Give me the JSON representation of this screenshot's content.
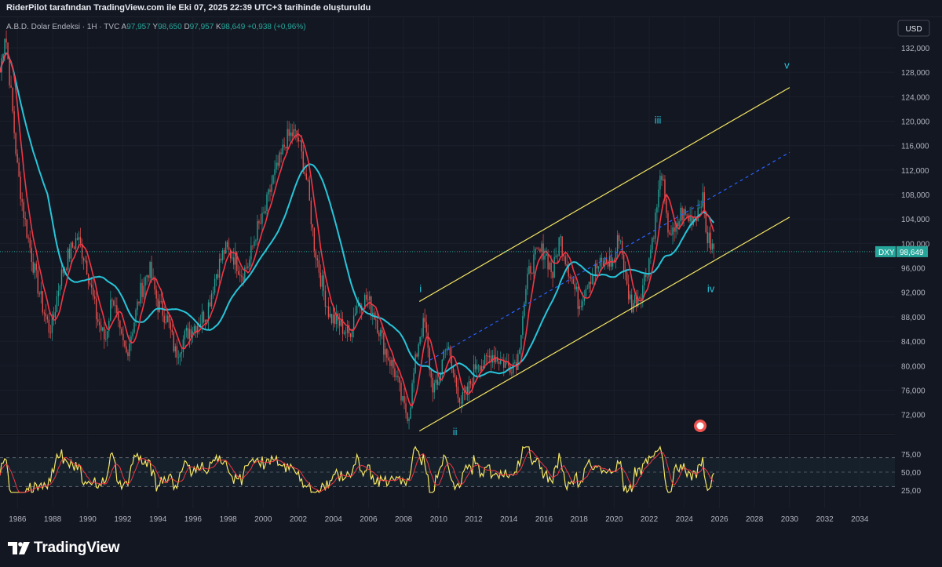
{
  "header": {
    "title": "RiderPilot tarafından TradingView.com ile Eki 07, 2025 22:39 UTC+3 tarihinde oluşturuldu"
  },
  "legend": {
    "symbol": "A.B.D. Dolar Endeksi · 1H · TVC",
    "open_label": "A",
    "open_value": "97,957",
    "high_label": "Y",
    "high_value": "98,650",
    "low_label": "D",
    "low_value": "97,957",
    "close_label": "K",
    "close_value": "98,649",
    "change": "+0,938 (+0,96%)"
  },
  "currency_button": "USD",
  "price_tag": {
    "symbol": "DXY",
    "value": "98,649"
  },
  "brand": "TradingView",
  "colors": {
    "background": "#0f111a",
    "grid": "#1b1f2b",
    "up": "#26a69a",
    "down": "#ef5350",
    "ema_fast": "#f23645",
    "sma_slow": "#26c6da",
    "channel": "#f5e663",
    "midline": "#2962ff",
    "rsi": "#f5e663",
    "rsi_ma": "#f23645",
    "wave_labels": "#26c6da"
  },
  "chart_data": [
    {
      "type": "candlestick",
      "title": "A.B.D. Dolar Endeksi",
      "x_axis": {
        "type": "year",
        "range": [
          1985,
          2036
        ],
        "ticks": [
          "1986",
          "1988",
          "1990",
          "1992",
          "1994",
          "1996",
          "1998",
          "2000",
          "2002",
          "2004",
          "2006",
          "2008",
          "2010",
          "2012",
          "2014",
          "2016",
          "2018",
          "2020",
          "2022",
          "2024",
          "2026",
          "2028",
          "2030",
          "2032",
          "2034"
        ]
      },
      "y_axis": {
        "range": [
          69,
          137
        ],
        "ticks": [
          "132,000",
          "128,000",
          "124,000",
          "120,000",
          "116,000",
          "112,000",
          "108,000",
          "104,000",
          "100,000",
          "96,000",
          "92,000",
          "88,000",
          "84,000",
          "80,000",
          "76,000",
          "72,000"
        ]
      },
      "series": [
        {
          "name": "DXY",
          "x": [
            1985.0,
            1985.3,
            1985.7,
            1986.0,
            1986.4,
            1986.8,
            1987.0,
            1987.4,
            1987.8,
            1988.0,
            1988.4,
            1988.9,
            1989.4,
            1989.9,
            1990.5,
            1991.0,
            1991.4,
            1991.8,
            1992.2,
            1992.7,
            1993.0,
            1993.5,
            1994.0,
            1994.5,
            1995.0,
            1995.4,
            1995.8,
            1996.3,
            1996.8,
            1997.3,
            1997.8,
            1998.3,
            1998.8,
            1999.2,
            1999.6,
            2000.0,
            2000.5,
            2000.9,
            2001.3,
            2001.7,
            2002.0,
            2002.5,
            2002.9,
            2003.3,
            2003.8,
            2004.3,
            2004.9,
            2005.3,
            2005.9,
            2006.4,
            2006.9,
            2007.5,
            2008.0,
            2008.3,
            2008.6,
            2008.9,
            2009.2,
            2009.6,
            2009.9,
            2010.4,
            2010.8,
            2011.3,
            2011.7,
            2012.2,
            2012.6,
            2013.0,
            2013.5,
            2014.0,
            2014.5,
            2014.8,
            2015.2,
            2015.6,
            2016.0,
            2016.5,
            2016.9,
            2017.5,
            2018.0,
            2018.5,
            2019.0,
            2019.5,
            2020.0,
            2020.3,
            2020.7,
            2021.0,
            2021.5,
            2021.9,
            2022.3,
            2022.7,
            2023.0,
            2023.4,
            2023.8,
            2024.3,
            2024.7,
            2025.0,
            2025.3,
            2025.7
          ],
          "close": [
            128,
            135,
            122,
            112,
            104,
            98,
            95,
            90,
            86,
            87,
            94,
            98,
            101,
            97,
            88,
            84,
            92,
            85,
            82,
            88,
            92,
            96,
            90,
            88,
            82,
            84,
            86,
            87,
            89,
            95,
            99,
            98,
            95,
            97,
            102,
            104,
            110,
            113,
            117,
            118,
            117,
            110,
            100,
            94,
            88,
            87,
            85,
            90,
            91,
            88,
            83,
            79,
            73,
            72,
            79,
            85,
            87,
            77,
            76,
            84,
            79,
            74,
            76,
            81,
            80,
            82,
            81,
            80,
            81,
            89,
            96,
            98,
            99,
            95,
            101,
            95,
            90,
            94,
            96,
            97,
            97,
            102,
            93,
            90,
            92,
            96,
            103,
            112,
            103,
            101,
            105,
            104,
            105,
            108,
            101,
            98.6
          ]
        },
        {
          "name": "RSI",
          "range": [
            0,
            100
          ],
          "ticks": [
            "75,00",
            "50,00",
            "25,00"
          ],
          "levels": [
            70,
            50,
            30
          ]
        }
      ]
    }
  ],
  "annotations": {
    "wave_i": "i",
    "wave_ii": "ii",
    "wave_iii": "iii",
    "wave_iv": "iv",
    "wave_v": "v"
  }
}
